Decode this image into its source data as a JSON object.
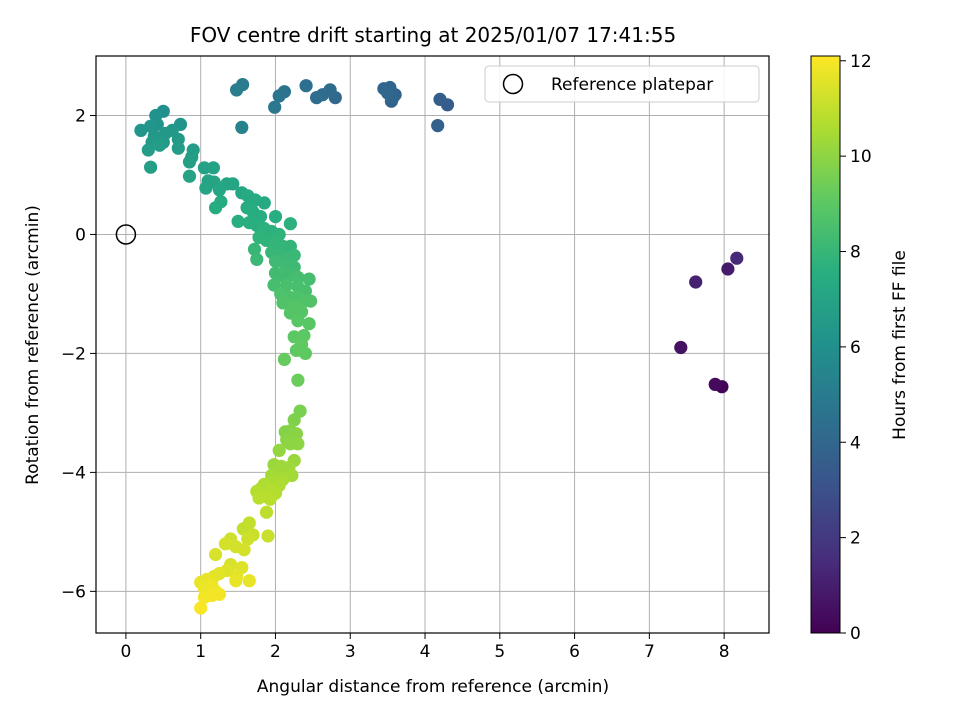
{
  "chart_data": {
    "type": "scatter",
    "title": "FOV centre drift starting at 2025/01/07 17:41:55",
    "xlabel": "Angular distance from reference (arcmin)",
    "ylabel": "Rotation from reference (arcmin)",
    "xlim": [
      -0.4,
      8.6
    ],
    "ylim": [
      -6.7,
      3.0
    ],
    "xticks": [
      0,
      1,
      2,
      3,
      4,
      5,
      6,
      7,
      8
    ],
    "yticks": [
      -6,
      -4,
      -2,
      0,
      2
    ],
    "xtick_labels": [
      "0",
      "1",
      "2",
      "3",
      "4",
      "5",
      "6",
      "7",
      "8"
    ],
    "ytick_labels": [
      "−6",
      "−4",
      "−2",
      "0",
      "2"
    ],
    "grid": true,
    "legend": {
      "position": "upper-right",
      "entries": [
        {
          "label": "Reference platepar",
          "marker": "open-circle"
        }
      ]
    },
    "reference_point": {
      "x": 0,
      "y": 0
    },
    "colorbar": {
      "label": "Hours from first FF file",
      "colormap": "viridis",
      "range": [
        0,
        12.1
      ],
      "ticks": [
        0,
        2,
        4,
        6,
        8,
        10,
        12
      ],
      "tick_labels": [
        "0",
        "2",
        "4",
        "6",
        "8",
        "10",
        "12"
      ]
    },
    "series": [
      {
        "columns": [
          "x",
          "y",
          "hours"
        ],
        "points": [
          [
            7.97,
            -2.56,
            0.1
          ],
          [
            7.88,
            -2.52,
            0.3
          ],
          [
            7.42,
            -1.9,
            0.6
          ],
          [
            8.05,
            -0.58,
            0.9
          ],
          [
            7.62,
            -0.8,
            1.1
          ],
          [
            8.17,
            -0.4,
            1.4
          ],
          [
            4.3,
            2.18,
            3.5
          ],
          [
            4.2,
            2.27,
            3.6
          ],
          [
            4.17,
            1.83,
            3.7
          ],
          [
            3.55,
            2.24,
            3.8
          ],
          [
            3.6,
            2.35,
            3.8
          ],
          [
            3.53,
            2.47,
            3.9
          ],
          [
            3.45,
            2.45,
            3.9
          ],
          [
            3.57,
            2.3,
            3.9
          ],
          [
            3.5,
            2.38,
            4.0
          ],
          [
            2.8,
            2.3,
            4.1
          ],
          [
            2.73,
            2.43,
            4.2
          ],
          [
            2.63,
            2.35,
            4.3
          ],
          [
            2.55,
            2.3,
            4.3
          ],
          [
            2.41,
            2.5,
            4.4
          ],
          [
            2.12,
            2.4,
            4.6
          ],
          [
            2.05,
            2.33,
            4.7
          ],
          [
            1.99,
            2.14,
            4.8
          ],
          [
            1.56,
            2.52,
            5.0
          ],
          [
            1.48,
            2.43,
            5.1
          ],
          [
            1.55,
            1.8,
            5.3
          ],
          [
            0.5,
            2.07,
            6.0
          ],
          [
            0.4,
            2.0,
            6.1
          ],
          [
            0.73,
            1.85,
            6.2
          ],
          [
            0.42,
            1.85,
            6.2
          ],
          [
            0.33,
            1.82,
            6.3
          ],
          [
            0.2,
            1.75,
            6.3
          ],
          [
            0.62,
            1.75,
            6.4
          ],
          [
            0.53,
            1.7,
            6.4
          ],
          [
            0.38,
            1.65,
            6.4
          ],
          [
            0.7,
            1.6,
            6.5
          ],
          [
            0.35,
            1.55,
            6.5
          ],
          [
            0.5,
            1.55,
            6.5
          ],
          [
            0.45,
            1.5,
            6.6
          ],
          [
            0.7,
            1.45,
            6.6
          ],
          [
            0.3,
            1.42,
            6.6
          ],
          [
            0.9,
            1.42,
            6.7
          ],
          [
            0.88,
            1.3,
            6.7
          ],
          [
            0.85,
            1.22,
            6.8
          ],
          [
            0.33,
            1.13,
            6.8
          ],
          [
            1.05,
            1.12,
            6.9
          ],
          [
            1.17,
            1.12,
            6.9
          ],
          [
            0.85,
            0.98,
            7.0
          ],
          [
            1.1,
            0.9,
            7.0
          ],
          [
            1.18,
            0.88,
            7.0
          ],
          [
            1.35,
            0.85,
            7.1
          ],
          [
            1.43,
            0.85,
            7.1
          ],
          [
            1.07,
            0.78,
            7.1
          ],
          [
            1.25,
            0.75,
            7.2
          ],
          [
            1.55,
            0.7,
            7.2
          ],
          [
            1.63,
            0.65,
            7.3
          ],
          [
            1.73,
            0.58,
            7.3
          ],
          [
            1.85,
            0.53,
            7.3
          ],
          [
            1.27,
            0.55,
            7.4
          ],
          [
            1.2,
            0.45,
            7.4
          ],
          [
            1.62,
            0.45,
            7.4
          ],
          [
            1.7,
            0.38,
            7.5
          ],
          [
            1.8,
            0.3,
            7.5
          ],
          [
            2.0,
            0.3,
            7.5
          ],
          [
            1.5,
            0.22,
            7.6
          ],
          [
            1.65,
            0.2,
            7.6
          ],
          [
            1.75,
            0.15,
            7.6
          ],
          [
            2.2,
            0.18,
            7.7
          ],
          [
            1.85,
            0.1,
            7.7
          ],
          [
            1.95,
            0.05,
            7.7
          ],
          [
            2.05,
            0.0,
            7.8
          ],
          [
            1.78,
            -0.05,
            7.8
          ],
          [
            1.88,
            -0.1,
            7.8
          ],
          [
            2.0,
            -0.15,
            7.9
          ],
          [
            2.1,
            -0.2,
            7.9
          ],
          [
            2.2,
            -0.2,
            7.9
          ],
          [
            1.72,
            -0.25,
            8.0
          ],
          [
            1.95,
            -0.3,
            8.0
          ],
          [
            2.05,
            -0.35,
            8.0
          ],
          [
            2.15,
            -0.4,
            8.1
          ],
          [
            2.25,
            -0.35,
            8.1
          ],
          [
            1.75,
            -0.42,
            8.1
          ],
          [
            2.0,
            -0.45,
            8.2
          ],
          [
            2.13,
            -0.5,
            8.2
          ],
          [
            2.25,
            -0.55,
            8.2
          ],
          [
            2.0,
            -0.65,
            8.3
          ],
          [
            2.1,
            -0.7,
            8.3
          ],
          [
            2.2,
            -0.68,
            8.3
          ],
          [
            2.3,
            -0.72,
            8.4
          ],
          [
            2.45,
            -0.75,
            8.4
          ],
          [
            1.98,
            -0.85,
            8.4
          ],
          [
            2.15,
            -0.85,
            8.5
          ],
          [
            2.3,
            -0.88,
            8.5
          ],
          [
            2.4,
            -0.95,
            8.5
          ],
          [
            2.07,
            -1.0,
            8.6
          ],
          [
            2.18,
            -1.05,
            8.6
          ],
          [
            2.3,
            -1.05,
            8.6
          ],
          [
            2.38,
            -1.12,
            8.7
          ],
          [
            2.47,
            -1.12,
            8.7
          ],
          [
            2.1,
            -1.15,
            8.7
          ],
          [
            2.25,
            -1.2,
            8.8
          ],
          [
            2.2,
            -1.32,
            8.8
          ],
          [
            2.35,
            -1.3,
            8.8
          ],
          [
            2.3,
            -1.45,
            8.9
          ],
          [
            2.45,
            -1.5,
            8.9
          ],
          [
            2.25,
            -1.72,
            9.0
          ],
          [
            2.38,
            -1.7,
            9.0
          ],
          [
            2.35,
            -1.85,
            9.1
          ],
          [
            2.28,
            -1.95,
            9.1
          ],
          [
            2.4,
            -2.0,
            9.1
          ],
          [
            2.12,
            -2.1,
            9.2
          ],
          [
            2.3,
            -2.45,
            9.3
          ],
          [
            2.33,
            -2.97,
            9.6
          ],
          [
            2.25,
            -3.12,
            9.7
          ],
          [
            2.2,
            -3.3,
            9.8
          ],
          [
            2.13,
            -3.32,
            9.8
          ],
          [
            2.28,
            -3.35,
            9.9
          ],
          [
            2.15,
            -3.45,
            9.9
          ],
          [
            2.2,
            -3.52,
            10.0
          ],
          [
            2.3,
            -3.52,
            10.0
          ],
          [
            2.05,
            -3.63,
            10.1
          ],
          [
            2.25,
            -3.8,
            10.2
          ],
          [
            1.98,
            -3.87,
            10.2
          ],
          [
            2.08,
            -3.9,
            10.3
          ],
          [
            2.18,
            -3.92,
            10.3
          ],
          [
            2.05,
            -4.0,
            10.3
          ],
          [
            1.95,
            -4.05,
            10.4
          ],
          [
            2.12,
            -4.08,
            10.4
          ],
          [
            2.22,
            -4.05,
            10.4
          ],
          [
            2.1,
            -4.12,
            10.5
          ],
          [
            1.97,
            -4.15,
            10.5
          ],
          [
            2.0,
            -4.2,
            10.5
          ],
          [
            1.85,
            -4.2,
            10.6
          ],
          [
            2.05,
            -4.22,
            10.6
          ],
          [
            1.8,
            -4.28,
            10.6
          ],
          [
            1.93,
            -4.3,
            10.7
          ],
          [
            1.75,
            -4.32,
            10.7
          ],
          [
            2.0,
            -4.35,
            10.7
          ],
          [
            1.85,
            -4.4,
            10.8
          ],
          [
            1.78,
            -4.43,
            10.8
          ],
          [
            1.93,
            -4.45,
            10.8
          ],
          [
            1.88,
            -4.67,
            10.9
          ],
          [
            1.65,
            -4.85,
            11.0
          ],
          [
            1.57,
            -4.95,
            11.0
          ],
          [
            1.7,
            -5.05,
            11.1
          ],
          [
            1.9,
            -5.07,
            11.1
          ],
          [
            1.63,
            -5.12,
            11.2
          ],
          [
            1.4,
            -5.12,
            11.2
          ],
          [
            1.47,
            -5.25,
            11.3
          ],
          [
            1.33,
            -5.2,
            11.3
          ],
          [
            1.58,
            -5.3,
            11.3
          ],
          [
            1.2,
            -5.38,
            11.4
          ],
          [
            1.4,
            -5.55,
            11.4
          ],
          [
            1.55,
            -5.6,
            11.5
          ],
          [
            1.35,
            -5.65,
            11.5
          ],
          [
            1.25,
            -5.7,
            11.6
          ],
          [
            1.48,
            -5.75,
            11.6
          ],
          [
            1.18,
            -5.75,
            11.6
          ],
          [
            1.08,
            -5.8,
            11.7
          ],
          [
            1.0,
            -5.85,
            11.7
          ],
          [
            1.65,
            -5.82,
            11.7
          ],
          [
            1.47,
            -5.82,
            11.7
          ],
          [
            1.15,
            -5.9,
            11.8
          ],
          [
            1.05,
            -5.95,
            11.8
          ],
          [
            1.2,
            -6.0,
            11.8
          ],
          [
            1.25,
            -6.05,
            11.9
          ],
          [
            1.15,
            -6.07,
            11.9
          ],
          [
            1.05,
            -6.1,
            11.9
          ],
          [
            1.0,
            -6.28,
            12.0
          ]
        ]
      }
    ]
  }
}
